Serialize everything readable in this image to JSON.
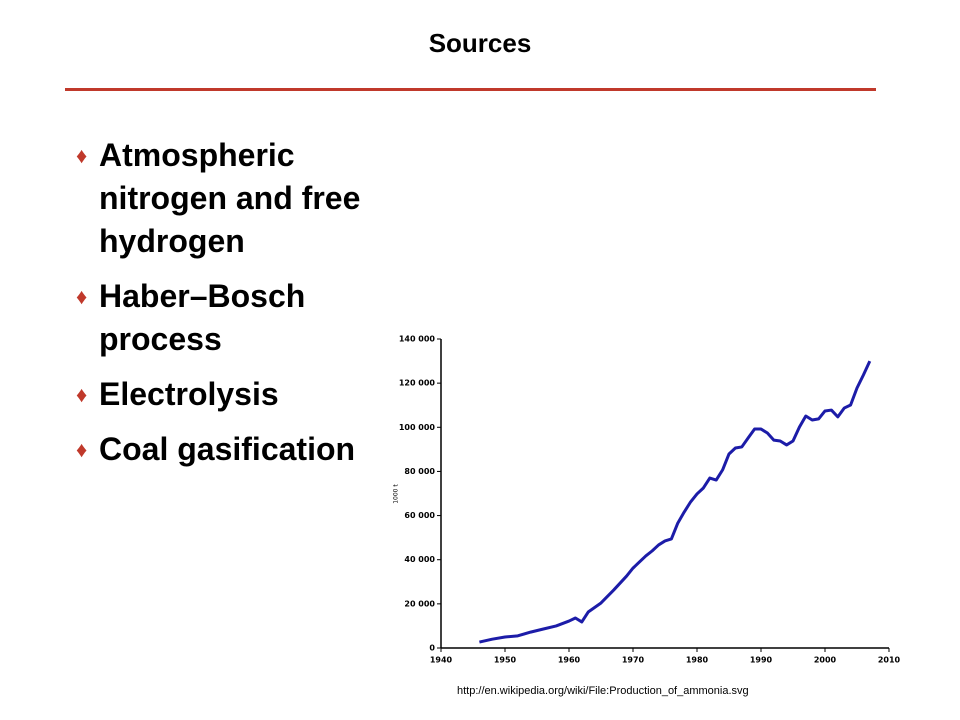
{
  "title": "Sources",
  "bullets": [
    "Atmospheric nitrogen and free hydrogen",
    "Haber–Bosch process",
    "Electrolysis",
    "Coal gasification"
  ],
  "chart_data": {
    "type": "line",
    "y_label": "1000 t",
    "x": [
      1946,
      1948,
      1950,
      1952,
      1954,
      1956,
      1958,
      1960,
      1961,
      1962,
      1963,
      1965,
      1967,
      1969,
      1970,
      1972,
      1973,
      1974,
      1975,
      1976,
      1977,
      1978,
      1979,
      1980,
      1981,
      1982,
      1983,
      1984,
      1985,
      1986,
      1987,
      1988,
      1989,
      1990,
      1991,
      1992,
      1993,
      1994,
      1995,
      1996,
      1997,
      1998,
      1999,
      2000,
      2001,
      2002,
      2003,
      2004,
      2005,
      2006,
      2007
    ],
    "series": [
      {
        "color": "#1c1ca8",
        "values": [
          2700,
          4000,
          5000,
          5500,
          7200,
          8600,
          10000,
          12200,
          13600,
          11800,
          16300,
          20400,
          26300,
          32600,
          36200,
          41700,
          44000,
          46700,
          48500,
          49400,
          56600,
          61600,
          66200,
          69800,
          72500,
          77000,
          76100,
          80700,
          87900,
          90600,
          91100,
          95200,
          99200,
          99200,
          97400,
          94200,
          93800,
          92000,
          93800,
          100100,
          105100,
          103300,
          103800,
          107400,
          107800,
          104700,
          108700,
          110100,
          117800,
          123700,
          130000
        ]
      }
    ],
    "xlim": [
      1940,
      2010
    ],
    "xticks": [
      1940,
      1950,
      1960,
      1970,
      1980,
      1990,
      2000,
      2010
    ],
    "ylim": [
      0,
      140000
    ],
    "yticks": [
      0,
      {
        "value": 20000,
        "label": "20 000"
      },
      {
        "value": 40000,
        "label": "40 000"
      },
      {
        "value": 60000,
        "label": "60 000"
      },
      {
        "value": 80000,
        "label": "80 000"
      },
      {
        "value": 100000,
        "label": "100 000"
      },
      {
        "value": 120000,
        "label": "120 000"
      },
      {
        "value": 140000,
        "label": "140 000"
      }
    ]
  },
  "source": "http://en.wikipedia.org/wiki/File:Production_of_ammonia.svg"
}
